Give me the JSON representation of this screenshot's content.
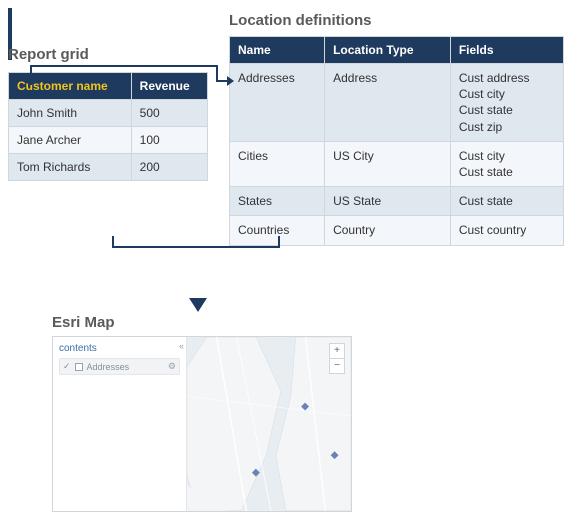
{
  "colors": {
    "header_bg": "#1f3a5f",
    "header_text": "#ffffff",
    "highlight_col": "#f0c419",
    "row_odd": "#dfe7ef",
    "row_even": "#f3f6fa",
    "border": "#cfd6dc",
    "connector": "#1f3a5f",
    "label_text": "#5a5a5a",
    "map_water": "#e8edf1",
    "map_land": "#f3f5f6",
    "map_road": "#ffffff",
    "map_marker": "#4f6fa8"
  },
  "report_grid": {
    "title": "Report grid",
    "type": "table",
    "columns": [
      "Customer name",
      "Revenue"
    ],
    "highlight_column_index": 0,
    "rows": [
      [
        "John Smith",
        "500"
      ],
      [
        "Jane Archer",
        "100"
      ],
      [
        "Tom Richards",
        "200"
      ]
    ]
  },
  "location_definitions": {
    "title": "Location definitions",
    "type": "table",
    "columns": [
      "Name",
      "Location Type",
      "Fields"
    ],
    "rows": [
      [
        "Addresses",
        "Address",
        "Cust address\nCust city\nCust state\nCust zip"
      ],
      [
        "Cities",
        "US City",
        "Cust city\nCust state"
      ],
      [
        "States",
        "US State",
        "Cust state"
      ],
      [
        "Countries",
        "Country",
        "Cust country"
      ]
    ]
  },
  "esri_map": {
    "title": "Esri Map",
    "sidebar_title": "contents",
    "layers": [
      {
        "name": "Addresses",
        "checked": true
      }
    ],
    "zoom": {
      "in": "+",
      "out": "−"
    },
    "markers": [
      {
        "x": 0.42,
        "y": 0.78
      },
      {
        "x": 0.72,
        "y": 0.4
      },
      {
        "x": 0.9,
        "y": 0.68
      }
    ]
  }
}
